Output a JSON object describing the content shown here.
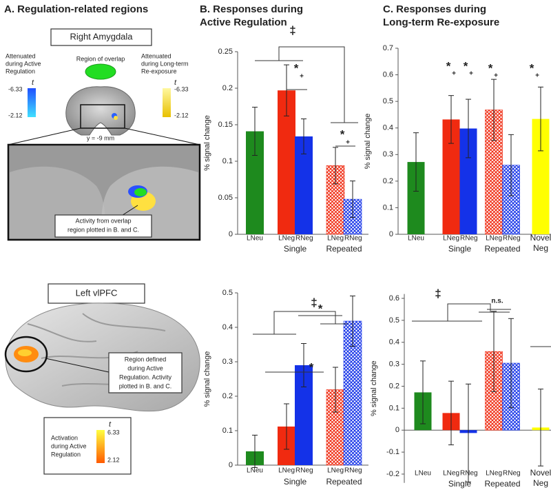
{
  "panel_a": {
    "title": "A. Regulation-related regions",
    "amygdala_box": "Right Amygdala",
    "attenuated_active": [
      "Attenuated",
      "during Active",
      "Regulation"
    ],
    "overlap": "Region of overlap",
    "attenuated_reexposure": [
      "Attenuated",
      "during Long-term",
      "Re-exposure"
    ],
    "colorbar_blue": {
      "label": "t",
      "ticks": [
        -6.33,
        -2.12
      ]
    },
    "colorbar_yellow": {
      "label": "t",
      "ticks": [
        -6.33,
        -2.12
      ]
    },
    "slice": "y = -9 mm",
    "overlap_note": [
      "Activity from overlap",
      "region plotted in B. and C."
    ],
    "vlpfc_box": "Left vlPFC",
    "vlpfc_note": [
      "Region defined",
      "during Active",
      "Regulation.  Activity",
      "plotted in B. and C."
    ],
    "activation_label": [
      "Activation",
      "during Active",
      "Regulation"
    ],
    "colorbar_orange": {
      "label": "t",
      "ticks": [
        6.33,
        2.12
      ]
    }
  },
  "chart_data": [
    {
      "type": "bar",
      "title": [
        "B. Responses during",
        "Active Regulation"
      ],
      "y_label": "% signal change",
      "ylim": [
        0,
        0.25
      ],
      "yticks": [
        0,
        0.05,
        0.1,
        0.15,
        0.2,
        0.25
      ],
      "groups": [
        {
          "bars": [
            {
              "name": "LNeu",
              "value": 0.141,
              "error": 0.033,
              "color": "#1e8a1e",
              "hatched": false
            }
          ]
        },
        {
          "label": "Single",
          "bars": [
            {
              "name": "LNeg",
              "value": 0.197,
              "error": 0.035,
              "color": "#f02a10",
              "hatched": false
            },
            {
              "name": "RNeg",
              "value": 0.134,
              "error": 0.024,
              "color": "#1432e8",
              "hatched": false
            }
          ]
        },
        {
          "label": "Repeated",
          "bars": [
            {
              "name": "LNeg",
              "value": 0.094,
              "error": 0.025,
              "color": "#f02a10",
              "hatched": true
            },
            {
              "name": "RNeg",
              "value": 0.048,
              "error": 0.025,
              "color": "#1432e8",
              "hatched": true
            }
          ]
        }
      ],
      "annotations": [
        "‡",
        "*",
        "+",
        "*",
        "+"
      ]
    },
    {
      "type": "bar",
      "title": [
        "C. Responses during",
        "Long-term Re-exposure"
      ],
      "y_label": "% signal change",
      "ylim": [
        0,
        0.7
      ],
      "yticks": [
        0,
        0.1,
        0.2,
        0.3,
        0.4,
        0.5,
        0.6,
        0.7
      ],
      "groups": [
        {
          "bars": [
            {
              "name": "LNeu",
              "value": 0.272,
              "error": 0.11,
              "color": "#1e8a1e",
              "hatched": false
            }
          ]
        },
        {
          "label": "Single",
          "bars": [
            {
              "name": "LNeg",
              "value": 0.432,
              "error": 0.09,
              "color": "#f02a10",
              "hatched": false
            },
            {
              "name": "RNeg",
              "value": 0.398,
              "error": 0.11,
              "color": "#1432e8",
              "hatched": false
            }
          ]
        },
        {
          "label": "Repeated",
          "bars": [
            {
              "name": "LNeg",
              "value": 0.468,
              "error": 0.115,
              "color": "#f02a10",
              "hatched": true
            },
            {
              "name": "RNeg",
              "value": 0.26,
              "error": 0.115,
              "color": "#1432e8",
              "hatched": true
            }
          ]
        },
        {
          "label": [
            "Novel",
            "Neg"
          ],
          "bars": [
            {
              "value": 0.434,
              "error": 0.12,
              "color": "#ffff00",
              "hatched": false
            }
          ]
        }
      ],
      "annotations": [
        "*",
        "+",
        "*",
        "+",
        "*",
        "+",
        "*",
        "+"
      ]
    },
    {
      "type": "bar",
      "y_label": "% signal change",
      "ylim": [
        0,
        0.5
      ],
      "yticks": [
        0,
        0.1,
        0.2,
        0.3,
        0.4,
        0.5
      ],
      "groups": [
        {
          "bars": [
            {
              "name": "LNeu",
              "value": 0.04,
              "error": 0.047,
              "color": "#1e8a1e",
              "hatched": false
            }
          ]
        },
        {
          "label": "Single",
          "bars": [
            {
              "name": "LNeg",
              "value": 0.112,
              "error": 0.066,
              "color": "#f02a10",
              "hatched": false
            },
            {
              "name": "RNeg",
              "value": 0.29,
              "error": 0.063,
              "color": "#1432e8",
              "hatched": false
            }
          ]
        },
        {
          "label": "Repeated",
          "bars": [
            {
              "name": "LNeg",
              "value": 0.219,
              "error": 0.065,
              "color": "#f02a10",
              "hatched": true
            },
            {
              "name": "RNeg",
              "value": 0.418,
              "error": 0.073,
              "color": "#1432e8",
              "hatched": true
            }
          ]
        }
      ],
      "annotations": [
        "‡",
        "*",
        "*"
      ]
    },
    {
      "type": "bar",
      "y_label": "% signal change",
      "ylim": [
        -0.24,
        0.62
      ],
      "yticks": [
        -0.2,
        -0.1,
        0,
        0.1,
        0.2,
        0.3,
        0.4,
        0.5,
        0.6
      ],
      "groups": [
        {
          "bars": [
            {
              "name": "LNeu",
              "value": 0.172,
              "error": 0.143,
              "color": "#1e8a1e",
              "hatched": false
            }
          ]
        },
        {
          "label": "Single",
          "bars": [
            {
              "name": "LNeg",
              "value": 0.078,
              "error": 0.145,
              "color": "#f02a10",
              "hatched": false
            },
            {
              "name": "RNeg",
              "value": -0.013,
              "error": 0.223,
              "color": "#1432e8",
              "hatched": false
            }
          ]
        },
        {
          "label": "Repeated",
          "bars": [
            {
              "name": "LNeg",
              "value": 0.358,
              "error": 0.183,
              "color": "#f02a10",
              "hatched": true
            },
            {
              "name": "RNeg",
              "value": 0.305,
              "error": 0.203,
              "color": "#1432e8",
              "hatched": true
            }
          ]
        },
        {
          "label": [
            "Novel",
            "Neg"
          ],
          "bars": [
            {
              "value": 0.012,
              "error": 0.175,
              "color": "#ffff00",
              "hatched": false
            }
          ]
        }
      ],
      "annotations": [
        "‡",
        "n.s."
      ]
    }
  ]
}
